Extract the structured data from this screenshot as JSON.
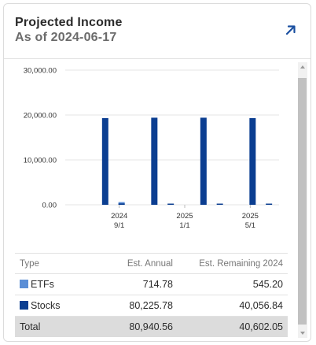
{
  "header": {
    "title": "Projected Income",
    "subtitle": "As of 2024-06-17"
  },
  "colors": {
    "etfs": "#5b8ed6",
    "stocks": "#0b3e91",
    "accent": "#1a4fa0"
  },
  "chart_data": {
    "type": "bar",
    "y_ticks": [
      "30,000.00",
      "20,000.00",
      "10,000.00",
      "0.00"
    ],
    "ylim": [
      0,
      30000
    ],
    "x_tick_labels": [
      {
        "line1": "2024",
        "line2": "9/1"
      },
      {
        "line1": "2025",
        "line2": "1/1"
      },
      {
        "line1": "2025",
        "line2": "5/1"
      }
    ],
    "series": [
      {
        "name": "Stocks",
        "color": "#0b3e91",
        "points": [
          {
            "x": "2024-08",
            "y": 19300
          },
          {
            "x": "2024-11",
            "y": 19400
          },
          {
            "x": "2025-02",
            "y": 19400
          },
          {
            "x": "2025-05",
            "y": 19300
          }
        ]
      },
      {
        "name": "ETFs",
        "color": "#5b8ed6",
        "points": [
          {
            "x": "2024-09",
            "y": 600
          }
        ]
      },
      {
        "name": "Stocks",
        "color": "#0b3e91",
        "points": [
          {
            "x": "2024-09",
            "y": 300
          },
          {
            "x": "2024-12",
            "y": 250
          },
          {
            "x": "2025-03",
            "y": 250
          },
          {
            "x": "2025-06",
            "y": 250
          }
        ]
      }
    ],
    "grid": true
  },
  "table": {
    "columns": [
      "Type",
      "Est. Annual",
      "Est. Remaining 2024"
    ],
    "rows": [
      {
        "type": "ETFs",
        "annual": "714.78",
        "remaining": "545.20"
      },
      {
        "type": "Stocks",
        "annual": "80,225.78",
        "remaining": "40,056.84"
      }
    ],
    "total": {
      "type": "Total",
      "annual": "80,940.56",
      "remaining": "40,602.05"
    }
  },
  "icons": {
    "expand": "arrow-up-right-icon"
  }
}
